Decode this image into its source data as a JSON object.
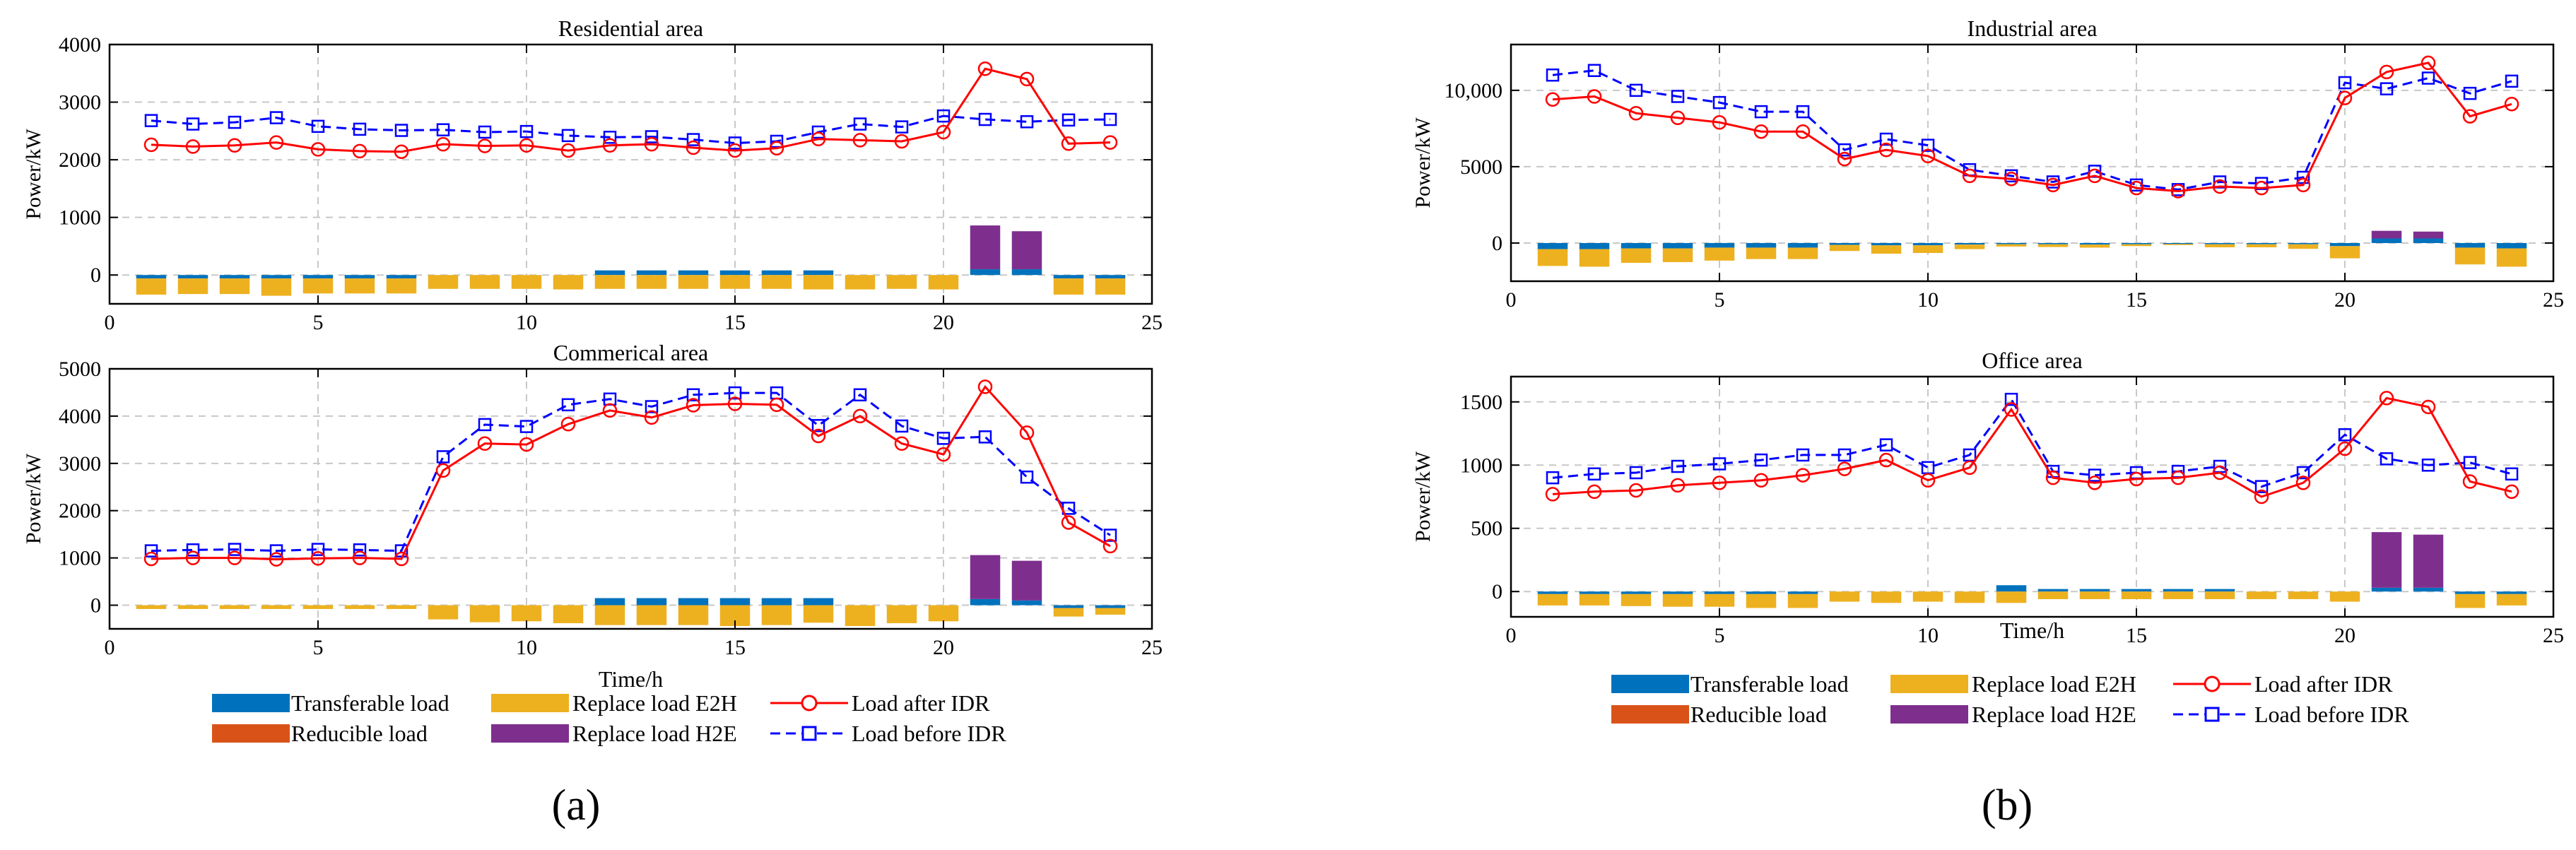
{
  "figure_labels": [
    "(a)",
    "(b)"
  ],
  "legend": {
    "transferable": "Transferable load",
    "reducible": "Reducible load",
    "e2h": "Replace load E2H",
    "h2e": "Replace load H2E",
    "after": "Load after IDR",
    "before": "Load before IDR"
  },
  "colors": {
    "transferable": "#0072BD",
    "reducible": "#D95319",
    "e2h": "#EDB120",
    "h2e": "#7E2F8E",
    "after": "#FF0000",
    "before": "#0000FF"
  },
  "chart_data": [
    {
      "type": "bar",
      "title": "Residential area",
      "xlabel": "",
      "ylabel": "Power/kW",
      "xlim": [
        0,
        25
      ],
      "ylim": [
        -500,
        4000
      ],
      "xticks": [
        "0",
        "5",
        "10",
        "15",
        "20",
        "25"
      ],
      "yticks": [
        "0",
        "1000",
        "2000",
        "3000",
        "4000"
      ],
      "x": [
        1,
        2,
        3,
        4,
        5,
        6,
        7,
        8,
        9,
        10,
        11,
        12,
        13,
        14,
        15,
        16,
        17,
        18,
        19,
        20,
        21,
        22,
        23,
        24
      ],
      "series": [
        {
          "name": "Load after IDR",
          "values": [
            2260,
            2230,
            2250,
            2300,
            2180,
            2150,
            2140,
            2270,
            2240,
            2250,
            2160,
            2250,
            2270,
            2210,
            2160,
            2200,
            2360,
            2340,
            2320,
            2480,
            3580,
            3400,
            2280,
            2300
          ]
        },
        {
          "name": "Load before IDR",
          "values": [
            2680,
            2620,
            2650,
            2730,
            2580,
            2530,
            2510,
            2520,
            2480,
            2490,
            2420,
            2390,
            2400,
            2350,
            2290,
            2320,
            2480,
            2620,
            2570,
            2760,
            2700,
            2660,
            2690,
            2700
          ]
        },
        {
          "name": "Transferable load",
          "values": [
            -60,
            -60,
            -60,
            -60,
            -60,
            -60,
            -60,
            0,
            0,
            0,
            0,
            80,
            80,
            80,
            80,
            80,
            80,
            0,
            0,
            0,
            100,
            100,
            -60,
            -60
          ]
        },
        {
          "name": "Reducible load",
          "values": [
            0,
            0,
            0,
            0,
            0,
            0,
            0,
            0,
            0,
            0,
            0,
            0,
            0,
            0,
            0,
            0,
            0,
            0,
            0,
            0,
            0,
            0,
            0,
            0
          ]
        },
        {
          "name": "Replace load E2H",
          "values": [
            -280,
            -270,
            -270,
            -300,
            -260,
            -260,
            -260,
            -240,
            -240,
            -240,
            -250,
            -240,
            -240,
            -240,
            -240,
            -240,
            -250,
            -250,
            -240,
            -250,
            0,
            0,
            -280,
            -280
          ]
        },
        {
          "name": "Replace load H2E",
          "values": [
            0,
            0,
            0,
            0,
            0,
            0,
            0,
            0,
            0,
            0,
            0,
            0,
            0,
            0,
            0,
            0,
            0,
            0,
            0,
            0,
            760,
            660,
            0,
            0
          ]
        }
      ]
    },
    {
      "type": "bar",
      "title": "Commerical area",
      "xlabel": "Time/h",
      "ylabel": "Power/kW",
      "xlim": [
        0,
        25
      ],
      "ylim": [
        -500,
        5000
      ],
      "xticks": [
        "0",
        "5",
        "10",
        "15",
        "20",
        "25"
      ],
      "yticks": [
        "0",
        "1000",
        "2000",
        "3000",
        "4000",
        "5000"
      ],
      "x": [
        1,
        2,
        3,
        4,
        5,
        6,
        7,
        8,
        9,
        10,
        11,
        12,
        13,
        14,
        15,
        16,
        17,
        18,
        19,
        20,
        21,
        22,
        23,
        24
      ],
      "series": [
        {
          "name": "Load after IDR",
          "values": [
            980,
            1000,
            1000,
            970,
            990,
            1000,
            980,
            2850,
            3420,
            3400,
            3830,
            4120,
            3970,
            4230,
            4260,
            4240,
            3580,
            4000,
            3420,
            3190,
            4620,
            3650,
            1750,
            1250
          ]
        },
        {
          "name": "Load before IDR",
          "values": [
            1150,
            1170,
            1180,
            1150,
            1180,
            1170,
            1150,
            3140,
            3820,
            3780,
            4240,
            4360,
            4200,
            4450,
            4490,
            4490,
            3800,
            4450,
            3790,
            3530,
            3560,
            2710,
            2050,
            1480
          ]
        },
        {
          "name": "Transferable load",
          "values": [
            0,
            0,
            0,
            0,
            0,
            0,
            0,
            0,
            0,
            0,
            0,
            150,
            150,
            150,
            150,
            150,
            150,
            0,
            0,
            0,
            130,
            100,
            -60,
            -60
          ]
        },
        {
          "name": "Reducible load",
          "values": [
            0,
            0,
            0,
            0,
            0,
            0,
            0,
            0,
            0,
            0,
            0,
            0,
            0,
            0,
            0,
            0,
            0,
            0,
            0,
            0,
            0,
            0,
            0,
            0
          ]
        },
        {
          "name": "Replace load E2H",
          "values": [
            -80,
            -80,
            -80,
            -80,
            -80,
            -80,
            -80,
            -300,
            -360,
            -340,
            -380,
            -420,
            -420,
            -420,
            -440,
            -420,
            -370,
            -440,
            -380,
            -340,
            0,
            0,
            -180,
            -140
          ]
        },
        {
          "name": "Replace load H2E",
          "values": [
            0,
            0,
            0,
            0,
            0,
            0,
            0,
            0,
            0,
            0,
            0,
            0,
            0,
            0,
            0,
            0,
            0,
            0,
            0,
            0,
            930,
            840,
            0,
            0
          ]
        }
      ]
    },
    {
      "type": "bar",
      "title": "Industrial area",
      "xlabel": "",
      "ylabel": "Power/kW",
      "xlim": [
        0,
        25
      ],
      "ylim": [
        -2500,
        13000
      ],
      "xticks": [
        "0",
        "5",
        "10",
        "15",
        "20",
        "25"
      ],
      "yticks": [
        "0",
        "5000",
        "10,000"
      ],
      "x": [
        1,
        2,
        3,
        4,
        5,
        6,
        7,
        8,
        9,
        10,
        11,
        12,
        13,
        14,
        15,
        16,
        17,
        18,
        19,
        20,
        21,
        22,
        23,
        24
      ],
      "series": [
        {
          "name": "Load after IDR",
          "values": [
            9400,
            9600,
            8500,
            8200,
            7900,
            7300,
            7300,
            5500,
            6100,
            5700,
            4400,
            4200,
            3800,
            4400,
            3600,
            3400,
            3700,
            3600,
            3800,
            9500,
            11200,
            11800,
            8300,
            9100
          ]
        },
        {
          "name": "Load before IDR",
          "values": [
            11000,
            11300,
            10000,
            9600,
            9200,
            8600,
            8600,
            6100,
            6800,
            6400,
            4800,
            4400,
            4000,
            4700,
            3800,
            3500,
            4000,
            3900,
            4300,
            10500,
            10100,
            10800,
            9800,
            10600
          ]
        },
        {
          "name": "Transferable load",
          "values": [
            -400,
            -400,
            -350,
            -350,
            -300,
            -300,
            -300,
            -120,
            -150,
            -150,
            -100,
            -80,
            -80,
            -100,
            -80,
            -60,
            -80,
            -80,
            -80,
            -200,
            300,
            300,
            -300,
            -350
          ]
        },
        {
          "name": "Reducible load",
          "values": [
            0,
            0,
            0,
            0,
            0,
            0,
            0,
            0,
            0,
            0,
            0,
            0,
            0,
            0,
            0,
            0,
            0,
            0,
            0,
            0,
            0,
            0,
            0,
            0
          ]
        },
        {
          "name": "Replace load E2H",
          "values": [
            -1100,
            -1150,
            -950,
            -900,
            -850,
            -750,
            -750,
            -400,
            -550,
            -500,
            -300,
            -150,
            -180,
            -200,
            -120,
            -60,
            -200,
            -200,
            -300,
            -800,
            0,
            0,
            -1100,
            -1200
          ]
        },
        {
          "name": "Replace load H2E",
          "values": [
            0,
            0,
            0,
            0,
            0,
            0,
            0,
            0,
            0,
            0,
            0,
            0,
            0,
            0,
            0,
            0,
            0,
            0,
            0,
            0,
            500,
            450,
            0,
            0
          ]
        }
      ]
    },
    {
      "type": "bar",
      "title": "Office area",
      "xlabel": "Time/h",
      "ylabel": "Power/kW",
      "xlim": [
        0,
        25
      ],
      "ylim": [
        -200,
        1700
      ],
      "xticks": [
        "0",
        "5",
        "10",
        "15",
        "20",
        "25"
      ],
      "yticks": [
        "0",
        "500",
        "1000",
        "1500"
      ],
      "x": [
        1,
        2,
        3,
        4,
        5,
        6,
        7,
        8,
        9,
        10,
        11,
        12,
        13,
        14,
        15,
        16,
        17,
        18,
        19,
        20,
        21,
        22,
        23,
        24
      ],
      "series": [
        {
          "name": "Load after IDR",
          "values": [
            770,
            790,
            800,
            840,
            860,
            880,
            920,
            970,
            1040,
            880,
            980,
            1440,
            900,
            860,
            890,
            900,
            940,
            750,
            860,
            1130,
            1530,
            1460,
            870,
            790
          ]
        },
        {
          "name": "Load before IDR",
          "values": [
            900,
            930,
            940,
            990,
            1010,
            1040,
            1080,
            1080,
            1160,
            980,
            1080,
            1520,
            950,
            920,
            940,
            950,
            990,
            830,
            940,
            1240,
            1050,
            1000,
            1020,
            930
          ]
        },
        {
          "name": "Transferable load",
          "values": [
            -20,
            -20,
            -20,
            -20,
            -20,
            -20,
            -20,
            0,
            0,
            0,
            0,
            50,
            20,
            20,
            20,
            20,
            20,
            0,
            0,
            0,
            30,
            30,
            -20,
            -20
          ]
        },
        {
          "name": "Reducible load",
          "values": [
            0,
            0,
            0,
            0,
            0,
            0,
            0,
            0,
            0,
            0,
            0,
            0,
            0,
            0,
            0,
            0,
            0,
            0,
            0,
            0,
            0,
            0,
            0,
            0
          ]
        },
        {
          "name": "Replace load E2H",
          "values": [
            -90,
            -90,
            -95,
            -100,
            -100,
            -110,
            -110,
            -80,
            -90,
            -80,
            -90,
            -90,
            -60,
            -60,
            -60,
            -60,
            -60,
            -60,
            -60,
            -80,
            0,
            0,
            -110,
            -90
          ]
        },
        {
          "name": "Replace load H2E",
          "values": [
            0,
            0,
            0,
            0,
            0,
            0,
            0,
            0,
            0,
            0,
            0,
            0,
            0,
            0,
            0,
            0,
            0,
            0,
            0,
            0,
            440,
            420,
            0,
            0
          ]
        }
      ]
    }
  ]
}
